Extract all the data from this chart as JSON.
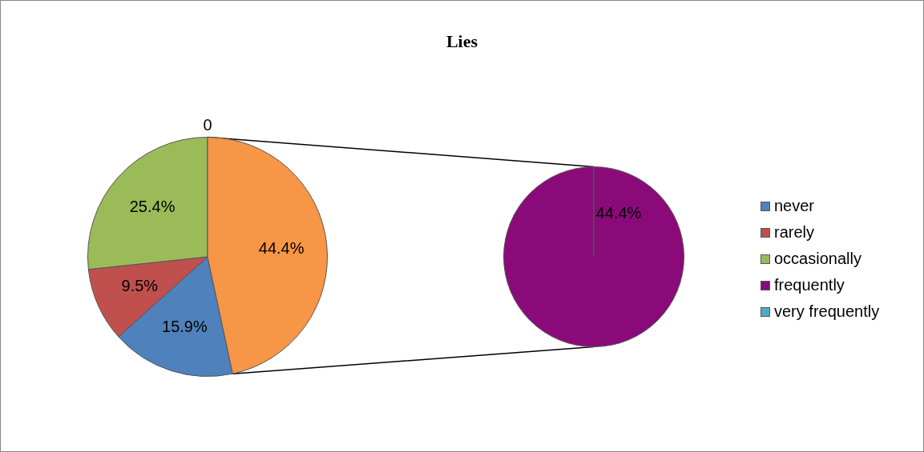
{
  "chart_data": [
    {
      "type": "pie",
      "title": "Lies",
      "categories": [
        "never",
        "rarely",
        "occasionally",
        "very frequently",
        null
      ],
      "values": [
        15.9,
        9.5,
        25.4,
        0,
        44.4
      ],
      "colors": [
        "#4f81bd",
        "#c0504d",
        "#9bbb59",
        "#4bacc6",
        "#f79646"
      ],
      "value_labels": [
        "15.9%",
        "9.5%",
        "25.4%",
        "0",
        "44.4%"
      ],
      "legend": "right"
    },
    {
      "type": "pie",
      "categories": [
        "frequently"
      ],
      "values": [
        44.4
      ],
      "colors": [
        "#8b0a7a"
      ],
      "value_labels": [
        "44.4%"
      ],
      "legend": "right"
    }
  ]
}
